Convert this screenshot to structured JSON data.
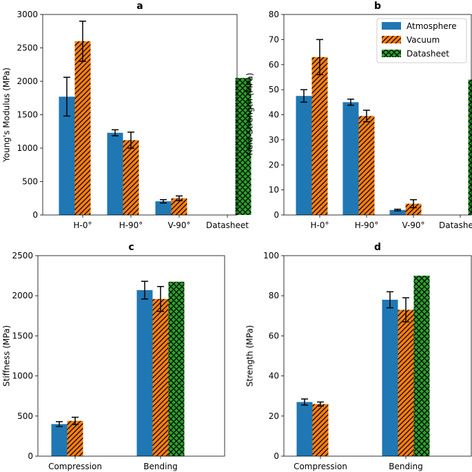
{
  "colors": {
    "atmosphere": "#1f77b4",
    "vacuum": "#ff7f0e",
    "datasheet": "#2ca02c"
  },
  "legend": [
    "Atmosphere",
    "Vacuum",
    "Datasheet"
  ],
  "chart_data": [
    {
      "type": "bar",
      "title": "a",
      "ylabel": "Young's Modulus (MPa)",
      "ylim": [
        0,
        3000
      ],
      "yticks": [
        0,
        500,
        1000,
        1500,
        2000,
        2500,
        3000
      ],
      "categories": [
        "H-0°",
        "H-90°",
        "V-90°",
        "Datasheet"
      ],
      "series": [
        {
          "name": "Atmosphere",
          "values": [
            1770,
            1230,
            205,
            0
          ],
          "errors": [
            290,
            45,
            25,
            0
          ]
        },
        {
          "name": "Vacuum",
          "values": [
            2600,
            1120,
            250,
            0
          ],
          "errors": [
            300,
            120,
            35,
            0
          ]
        },
        {
          "name": "Datasheet",
          "values": [
            0,
            0,
            0,
            2050
          ],
          "errors": [
            0,
            0,
            0,
            0
          ]
        }
      ]
    },
    {
      "type": "bar",
      "title": "b",
      "ylabel": "Yield Strength (MPa)",
      "ylim": [
        0,
        80
      ],
      "yticks": [
        0,
        10,
        20,
        30,
        40,
        50,
        60,
        70,
        80
      ],
      "categories": [
        "H-0°",
        "H-90°",
        "V-90°",
        "Datasheet"
      ],
      "series": [
        {
          "name": "Atmosphere",
          "values": [
            47.5,
            45,
            2,
            0
          ],
          "errors": [
            2.5,
            1.2,
            0.3,
            0
          ]
        },
        {
          "name": "Vacuum",
          "values": [
            63,
            39.5,
            4.5,
            0
          ],
          "errors": [
            7,
            2.3,
            1.6,
            0
          ]
        },
        {
          "name": "Datasheet",
          "values": [
            0,
            0,
            0,
            54
          ],
          "errors": [
            0,
            0,
            0,
            0
          ]
        }
      ]
    },
    {
      "type": "bar",
      "title": "c",
      "ylabel": "Stiffness (MPa)",
      "ylim": [
        0,
        2500
      ],
      "yticks": [
        0,
        500,
        1000,
        1500,
        2000,
        2500
      ],
      "categories": [
        "Compression",
        "Bending"
      ],
      "series": [
        {
          "name": "Atmosphere",
          "values": [
            400,
            2070
          ],
          "errors": [
            30,
            110
          ]
        },
        {
          "name": "Vacuum",
          "values": [
            440,
            1960
          ],
          "errors": [
            45,
            155
          ]
        },
        {
          "name": "Datasheet",
          "values": [
            0,
            2175
          ],
          "errors": [
            0,
            0
          ]
        }
      ]
    },
    {
      "type": "bar",
      "title": "d",
      "ylabel": "Strength (MPa)",
      "ylim": [
        0,
        100
      ],
      "yticks": [
        0,
        20,
        40,
        60,
        80,
        100
      ],
      "categories": [
        "Compression",
        "Bending"
      ],
      "series": [
        {
          "name": "Atmosphere",
          "values": [
            27,
            78
          ],
          "errors": [
            1.5,
            4
          ]
        },
        {
          "name": "Vacuum",
          "values": [
            26,
            73
          ],
          "errors": [
            1,
            6
          ]
        },
        {
          "name": "Datasheet",
          "values": [
            0,
            90
          ],
          "errors": [
            0,
            0
          ]
        }
      ]
    }
  ]
}
